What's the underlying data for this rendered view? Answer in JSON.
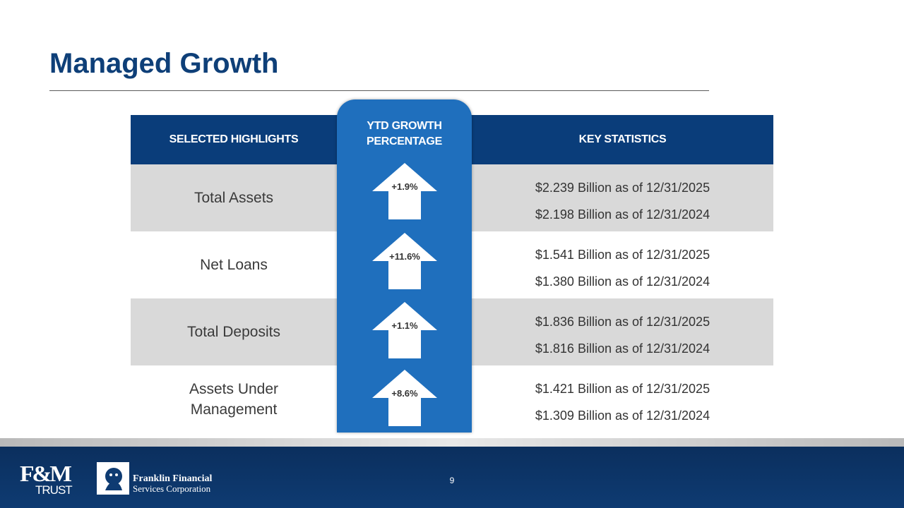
{
  "title": "Managed Growth",
  "headers": {
    "left": "SELECTED HIGHLIGHTS",
    "center_line1": "YTD GROWTH",
    "center_line2": "PERCENTAGE",
    "right": "KEY STATISTICS"
  },
  "rows": [
    {
      "label": "Total Assets",
      "growth": "+1.9%",
      "stat_current": "$2.239 Billion as of 12/31/2025",
      "stat_prior": "$2.198 Billion as of 12/31/2024"
    },
    {
      "label": "Net Loans",
      "growth": "+11.6%",
      "stat_current": "$1.541 Billion as of 12/31/2025",
      "stat_prior": "$1.380 Billion as of 12/31/2024"
    },
    {
      "label": "Total Deposits",
      "growth": "+1.1%",
      "stat_current": "$1.836 Billion as of 12/31/2025",
      "stat_prior": "$1.816 Billion as of 12/31/2024"
    },
    {
      "label_line1": "Assets Under",
      "label_line2": "Management",
      "growth": "+8.6%",
      "stat_current": "$1.421 Billion as of 12/31/2025",
      "stat_prior": "$1.309 Billion as of 12/31/2024"
    }
  ],
  "footer": {
    "page_number": "9",
    "logo_fm": "F&M",
    "logo_trust": "TRUST",
    "company_line1": "Franklin Financial",
    "company_line2": "Services Corporation"
  },
  "colors": {
    "title": "#0e3f78",
    "header_band": "#0a3d7a",
    "center_column": "#1f6fbd",
    "row_shade": "#d9d9d9",
    "footer": "#0e3b72"
  },
  "icons": [
    "up-arrow-icon",
    "lion-seal-icon"
  ]
}
